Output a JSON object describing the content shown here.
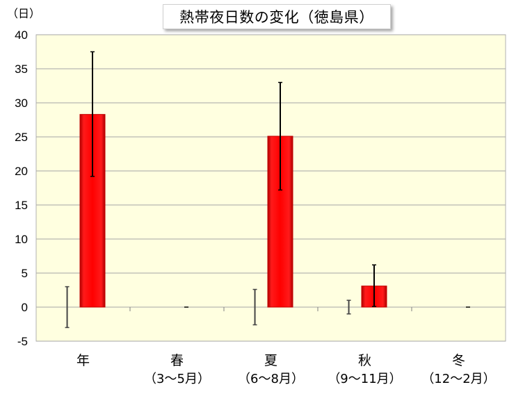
{
  "chart_data": {
    "type": "bar",
    "title": "熱帯夜日数の変化（徳島県）",
    "y_unit_label": "（日）",
    "ylim": [
      -5,
      40
    ],
    "y_ticks": [
      "40",
      "35",
      "30",
      "25",
      "20",
      "15",
      "10",
      "5",
      "0",
      "-5"
    ],
    "grid": true,
    "categories": [
      {
        "main": "年",
        "sub": ""
      },
      {
        "main": "春",
        "sub": "（3～5月）"
      },
      {
        "main": "夏",
        "sub": "（6～8月）"
      },
      {
        "main": "秋",
        "sub": "（9～11月）"
      },
      {
        "main": "冬",
        "sub": "（12～2月）"
      }
    ],
    "series": [
      {
        "values": [
          0,
          0,
          0,
          0,
          0
        ],
        "error_low": [
          -3.0,
          0,
          -2.6,
          -1.0,
          0
        ],
        "error_high": [
          3.0,
          0,
          2.6,
          1.0,
          0
        ],
        "color": "#808080"
      },
      {
        "values": [
          28.3,
          0,
          25.1,
          3.1,
          0
        ],
        "error_low": [
          19.2,
          0,
          17.2,
          0.1,
          0
        ],
        "error_high": [
          37.5,
          0,
          33.0,
          6.2,
          0
        ],
        "color": "#ff0000"
      }
    ],
    "colors": {
      "plot_bg": "#ffffe0",
      "grid": "#a6a6a6",
      "bar": "#ff0000",
      "bar_edge": "#c00000"
    }
  }
}
